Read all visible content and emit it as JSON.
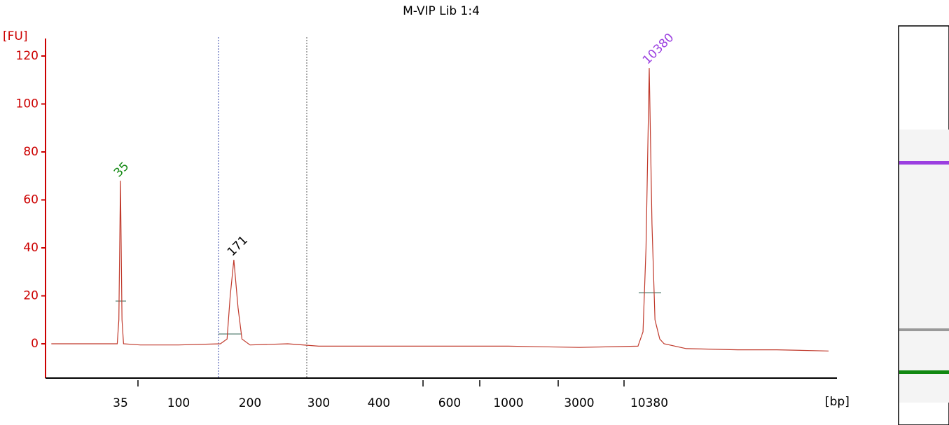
{
  "chart_data": {
    "type": "line",
    "title": "M-VIP Lib 1:4",
    "y_label": "[FU]",
    "x_label": "[bp]",
    "series": [
      {
        "color": "#c0392b",
        "x": [
          10,
          20,
          30,
          33,
          34,
          35,
          36,
          37,
          50,
          100,
          150,
          160,
          165,
          171,
          178,
          185,
          200,
          250,
          300,
          400,
          600,
          1000,
          3000,
          8500,
          9300,
          9800,
          10380,
          10900,
          11500,
          12500,
          13500,
          20000,
          50000,
          100000,
          250000
        ],
        "values": [
          0,
          0,
          0,
          0,
          10,
          68,
          10,
          0,
          -0.5,
          -0.5,
          0,
          2,
          20,
          35,
          15,
          2,
          -0.5,
          0,
          -1,
          -1,
          -1,
          -1,
          -1.5,
          -1,
          5,
          40,
          115,
          50,
          10,
          2,
          0,
          -2,
          -2.5,
          -2.5,
          -3
        ]
      }
    ],
    "peaks": [
      {
        "label": "35",
        "x": 35,
        "y": 68,
        "color": "#118811"
      },
      {
        "label": "171",
        "x": 171,
        "y": 35,
        "color": "#000000"
      },
      {
        "label": "10380",
        "x": 10380,
        "y": 115,
        "color": "#9b3fe0"
      }
    ],
    "xlim": [
      9,
      290000
    ],
    "xticks": [
      35,
      100,
      200,
      300,
      400,
      600,
      1000,
      3000,
      10380
    ],
    "ylim": [
      -14.3,
      127.3
    ],
    "yticks": [
      0,
      20,
      40,
      60,
      80,
      100,
      120
    ],
    "axis_color": "#cc0000"
  }
}
